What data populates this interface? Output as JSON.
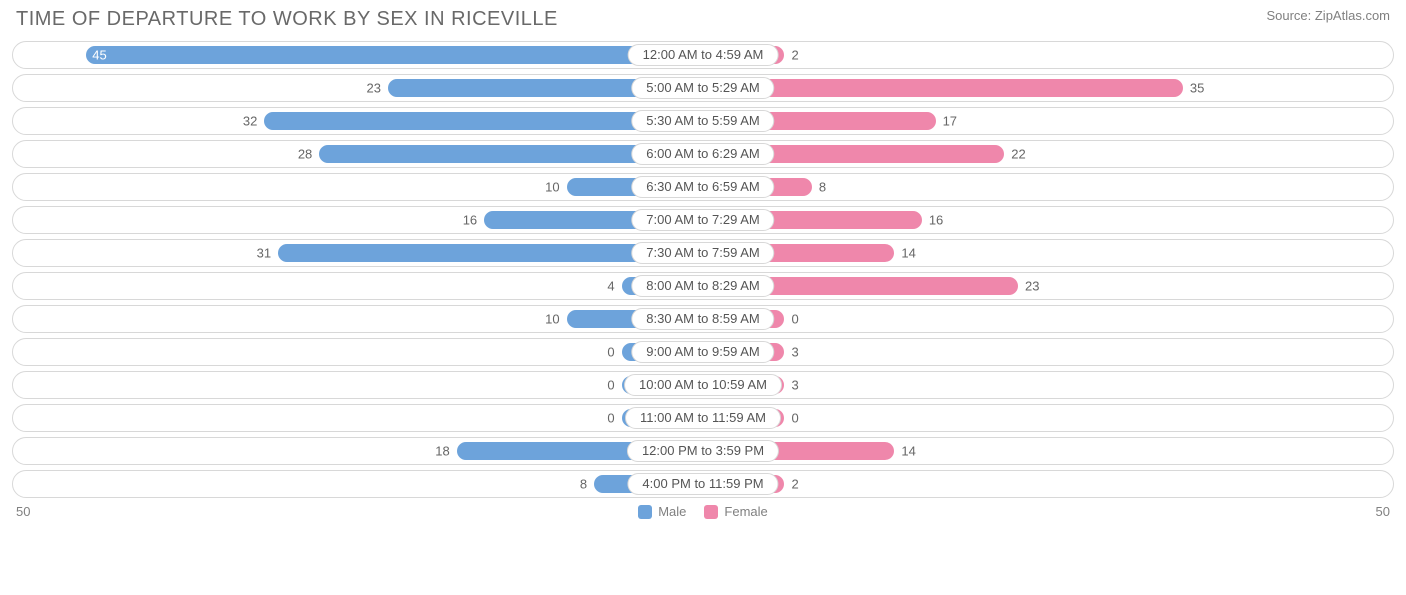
{
  "title": "TIME OF DEPARTURE TO WORK BY SEX IN RICEVILLE",
  "source": "Source: ZipAtlas.com",
  "axis_max": 50,
  "axis_label_left": "50",
  "axis_label_right": "50",
  "min_bar_width_pct": 12,
  "value_inside_threshold_pct": 88,
  "colors": {
    "male": "#6da3db",
    "female": "#ef87ab",
    "row_border": "#d8d8d8",
    "text": "#696969",
    "value_text": "#666666",
    "value_text_inside": "#ffffff",
    "background": "#ffffff"
  },
  "legend": [
    {
      "label": "Male",
      "color": "#6da3db"
    },
    {
      "label": "Female",
      "color": "#ef87ab"
    }
  ],
  "rows": [
    {
      "category": "12:00 AM to 4:59 AM",
      "male": 45,
      "female": 2
    },
    {
      "category": "5:00 AM to 5:29 AM",
      "male": 23,
      "female": 35
    },
    {
      "category": "5:30 AM to 5:59 AM",
      "male": 32,
      "female": 17
    },
    {
      "category": "6:00 AM to 6:29 AM",
      "male": 28,
      "female": 22
    },
    {
      "category": "6:30 AM to 6:59 AM",
      "male": 10,
      "female": 8
    },
    {
      "category": "7:00 AM to 7:29 AM",
      "male": 16,
      "female": 16
    },
    {
      "category": "7:30 AM to 7:59 AM",
      "male": 31,
      "female": 14
    },
    {
      "category": "8:00 AM to 8:29 AM",
      "male": 4,
      "female": 23
    },
    {
      "category": "8:30 AM to 8:59 AM",
      "male": 10,
      "female": 0
    },
    {
      "category": "9:00 AM to 9:59 AM",
      "male": 0,
      "female": 3
    },
    {
      "category": "10:00 AM to 10:59 AM",
      "male": 0,
      "female": 3
    },
    {
      "category": "11:00 AM to 11:59 AM",
      "male": 0,
      "female": 0
    },
    {
      "category": "12:00 PM to 3:59 PM",
      "male": 18,
      "female": 14
    },
    {
      "category": "4:00 PM to 11:59 PM",
      "male": 8,
      "female": 2
    }
  ]
}
